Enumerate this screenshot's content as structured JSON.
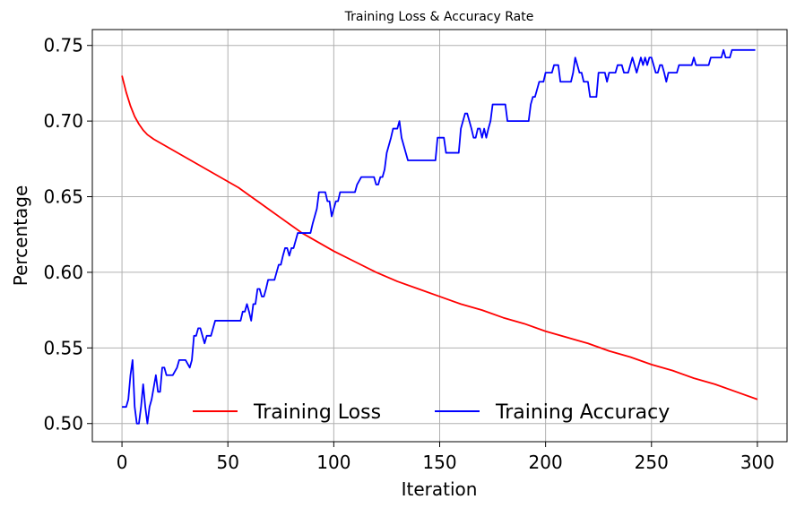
{
  "chart_data": {
    "type": "line",
    "title": "Training Loss & Accuracy Rate",
    "xlabel": "Iteration",
    "ylabel": "Percentage",
    "xlim": [
      -14,
      314
    ],
    "ylim": [
      0.488,
      0.7605
    ],
    "xticks": [
      0,
      50,
      100,
      150,
      200,
      250,
      300
    ],
    "yticks": [
      0.5,
      0.55,
      0.6,
      0.65,
      0.7,
      0.75
    ],
    "ytick_labels": [
      "0.50",
      "0.55",
      "0.60",
      "0.65",
      "0.70",
      "0.75"
    ],
    "grid": true,
    "legend": {
      "placement": "lower-center",
      "columns": 2
    },
    "series": [
      {
        "name": "Training Loss",
        "color": "#ff0000",
        "points": [
          [
            0,
            0.73
          ],
          [
            2,
            0.719
          ],
          [
            4,
            0.71
          ],
          [
            6,
            0.703
          ],
          [
            8,
            0.698
          ],
          [
            10,
            0.694
          ],
          [
            12,
            0.691
          ],
          [
            15,
            0.688
          ],
          [
            20,
            0.684
          ],
          [
            25,
            0.68
          ],
          [
            30,
            0.676
          ],
          [
            35,
            0.672
          ],
          [
            40,
            0.668
          ],
          [
            45,
            0.664
          ],
          [
            50,
            0.66
          ],
          [
            55,
            0.656
          ],
          [
            60,
            0.651
          ],
          [
            65,
            0.646
          ],
          [
            70,
            0.641
          ],
          [
            75,
            0.636
          ],
          [
            80,
            0.631
          ],
          [
            85,
            0.626
          ],
          [
            90,
            0.622
          ],
          [
            95,
            0.618
          ],
          [
            100,
            0.614
          ],
          [
            110,
            0.607
          ],
          [
            120,
            0.6
          ],
          [
            130,
            0.594
          ],
          [
            140,
            0.589
          ],
          [
            150,
            0.584
          ],
          [
            160,
            0.579
          ],
          [
            170,
            0.575
          ],
          [
            180,
            0.57
          ],
          [
            190,
            0.566
          ],
          [
            200,
            0.561
          ],
          [
            210,
            0.557
          ],
          [
            220,
            0.553
          ],
          [
            230,
            0.548
          ],
          [
            240,
            0.544
          ],
          [
            250,
            0.539
          ],
          [
            260,
            0.535
          ],
          [
            270,
            0.53
          ],
          [
            280,
            0.526
          ],
          [
            290,
            0.521
          ],
          [
            300,
            0.516
          ]
        ]
      },
      {
        "name": "Training Accuracy",
        "color": "#0000ff",
        "points": [
          [
            0,
            0.511
          ],
          [
            2,
            0.511
          ],
          [
            3,
            0.516
          ],
          [
            4,
            0.532
          ],
          [
            5,
            0.542
          ],
          [
            6,
            0.511
          ],
          [
            7,
            0.5
          ],
          [
            8,
            0.5
          ],
          [
            9,
            0.511
          ],
          [
            10,
            0.526
          ],
          [
            11,
            0.511
          ],
          [
            12,
            0.5
          ],
          [
            13,
            0.511
          ],
          [
            14,
            0.516
          ],
          [
            16,
            0.532
          ],
          [
            17,
            0.521
          ],
          [
            18,
            0.521
          ],
          [
            19,
            0.537
          ],
          [
            20,
            0.537
          ],
          [
            21,
            0.532
          ],
          [
            24,
            0.532
          ],
          [
            26,
            0.537
          ],
          [
            27,
            0.542
          ],
          [
            30,
            0.542
          ],
          [
            32,
            0.537
          ],
          [
            33,
            0.542
          ],
          [
            34,
            0.558
          ],
          [
            35,
            0.558
          ],
          [
            36,
            0.563
          ],
          [
            37,
            0.563
          ],
          [
            38,
            0.558
          ],
          [
            39,
            0.553
          ],
          [
            40,
            0.558
          ],
          [
            42,
            0.558
          ],
          [
            43,
            0.563
          ],
          [
            44,
            0.568
          ],
          [
            56,
            0.568
          ],
          [
            57,
            0.574
          ],
          [
            58,
            0.574
          ],
          [
            59,
            0.579
          ],
          [
            60,
            0.574
          ],
          [
            61,
            0.568
          ],
          [
            62,
            0.579
          ],
          [
            63,
            0.579
          ],
          [
            64,
            0.589
          ],
          [
            65,
            0.589
          ],
          [
            66,
            0.584
          ],
          [
            67,
            0.584
          ],
          [
            68,
            0.589
          ],
          [
            69,
            0.595
          ],
          [
            72,
            0.595
          ],
          [
            73,
            0.6
          ],
          [
            74,
            0.605
          ],
          [
            75,
            0.605
          ],
          [
            76,
            0.611
          ],
          [
            77,
            0.616
          ],
          [
            78,
            0.616
          ],
          [
            79,
            0.611
          ],
          [
            80,
            0.616
          ],
          [
            81,
            0.616
          ],
          [
            82,
            0.621
          ],
          [
            83,
            0.626
          ],
          [
            89,
            0.626
          ],
          [
            90,
            0.632
          ],
          [
            91,
            0.637
          ],
          [
            92,
            0.642
          ],
          [
            93,
            0.653
          ],
          [
            96,
            0.653
          ],
          [
            97,
            0.647
          ],
          [
            98,
            0.647
          ],
          [
            99,
            0.637
          ],
          [
            100,
            0.642
          ],
          [
            101,
            0.647
          ],
          [
            102,
            0.647
          ],
          [
            103,
            0.653
          ],
          [
            110,
            0.653
          ],
          [
            111,
            0.658
          ],
          [
            113,
            0.663
          ],
          [
            119,
            0.663
          ],
          [
            120,
            0.658
          ],
          [
            121,
            0.658
          ],
          [
            122,
            0.663
          ],
          [
            123,
            0.663
          ],
          [
            124,
            0.668
          ],
          [
            125,
            0.679
          ],
          [
            127,
            0.689
          ],
          [
            128,
            0.695
          ],
          [
            130,
            0.695
          ],
          [
            131,
            0.7
          ],
          [
            132,
            0.689
          ],
          [
            134,
            0.679
          ],
          [
            135,
            0.674
          ],
          [
            148,
            0.674
          ],
          [
            149,
            0.689
          ],
          [
            152,
            0.689
          ],
          [
            153,
            0.679
          ],
          [
            159,
            0.679
          ],
          [
            160,
            0.695
          ],
          [
            162,
            0.705
          ],
          [
            163,
            0.705
          ],
          [
            165,
            0.695
          ],
          [
            166,
            0.689
          ],
          [
            167,
            0.689
          ],
          [
            168,
            0.695
          ],
          [
            169,
            0.695
          ],
          [
            170,
            0.689
          ],
          [
            171,
            0.695
          ],
          [
            172,
            0.689
          ],
          [
            173,
            0.695
          ],
          [
            174,
            0.7
          ],
          [
            175,
            0.711
          ],
          [
            181,
            0.711
          ],
          [
            182,
            0.7
          ],
          [
            192,
            0.7
          ],
          [
            193,
            0.711
          ],
          [
            194,
            0.716
          ],
          [
            195,
            0.716
          ],
          [
            196,
            0.721
          ],
          [
            197,
            0.726
          ],
          [
            199,
            0.726
          ],
          [
            200,
            0.732
          ],
          [
            203,
            0.732
          ],
          [
            204,
            0.737
          ],
          [
            206,
            0.737
          ],
          [
            207,
            0.726
          ],
          [
            212,
            0.726
          ],
          [
            213,
            0.732
          ],
          [
            214,
            0.742
          ],
          [
            215,
            0.737
          ],
          [
            216,
            0.732
          ],
          [
            217,
            0.732
          ],
          [
            218,
            0.726
          ],
          [
            220,
            0.726
          ],
          [
            221,
            0.716
          ],
          [
            224,
            0.716
          ],
          [
            225,
            0.732
          ],
          [
            228,
            0.732
          ],
          [
            229,
            0.726
          ],
          [
            230,
            0.732
          ],
          [
            233,
            0.732
          ],
          [
            234,
            0.737
          ],
          [
            236,
            0.737
          ],
          [
            237,
            0.732
          ],
          [
            239,
            0.732
          ],
          [
            240,
            0.737
          ],
          [
            241,
            0.742
          ],
          [
            242,
            0.737
          ],
          [
            243,
            0.732
          ],
          [
            244,
            0.737
          ],
          [
            245,
            0.742
          ],
          [
            246,
            0.737
          ],
          [
            247,
            0.742
          ],
          [
            248,
            0.737
          ],
          [
            249,
            0.742
          ],
          [
            250,
            0.742
          ],
          [
            251,
            0.737
          ],
          [
            252,
            0.732
          ],
          [
            253,
            0.732
          ],
          [
            254,
            0.737
          ],
          [
            255,
            0.737
          ],
          [
            256,
            0.732
          ],
          [
            257,
            0.726
          ],
          [
            258,
            0.732
          ],
          [
            262,
            0.732
          ],
          [
            263,
            0.737
          ],
          [
            269,
            0.737
          ],
          [
            270,
            0.742
          ],
          [
            271,
            0.737
          ],
          [
            277,
            0.737
          ],
          [
            278,
            0.742
          ],
          [
            283,
            0.742
          ],
          [
            284,
            0.747
          ],
          [
            285,
            0.742
          ],
          [
            287,
            0.742
          ],
          [
            288,
            0.747
          ],
          [
            299,
            0.747
          ]
        ]
      }
    ]
  }
}
